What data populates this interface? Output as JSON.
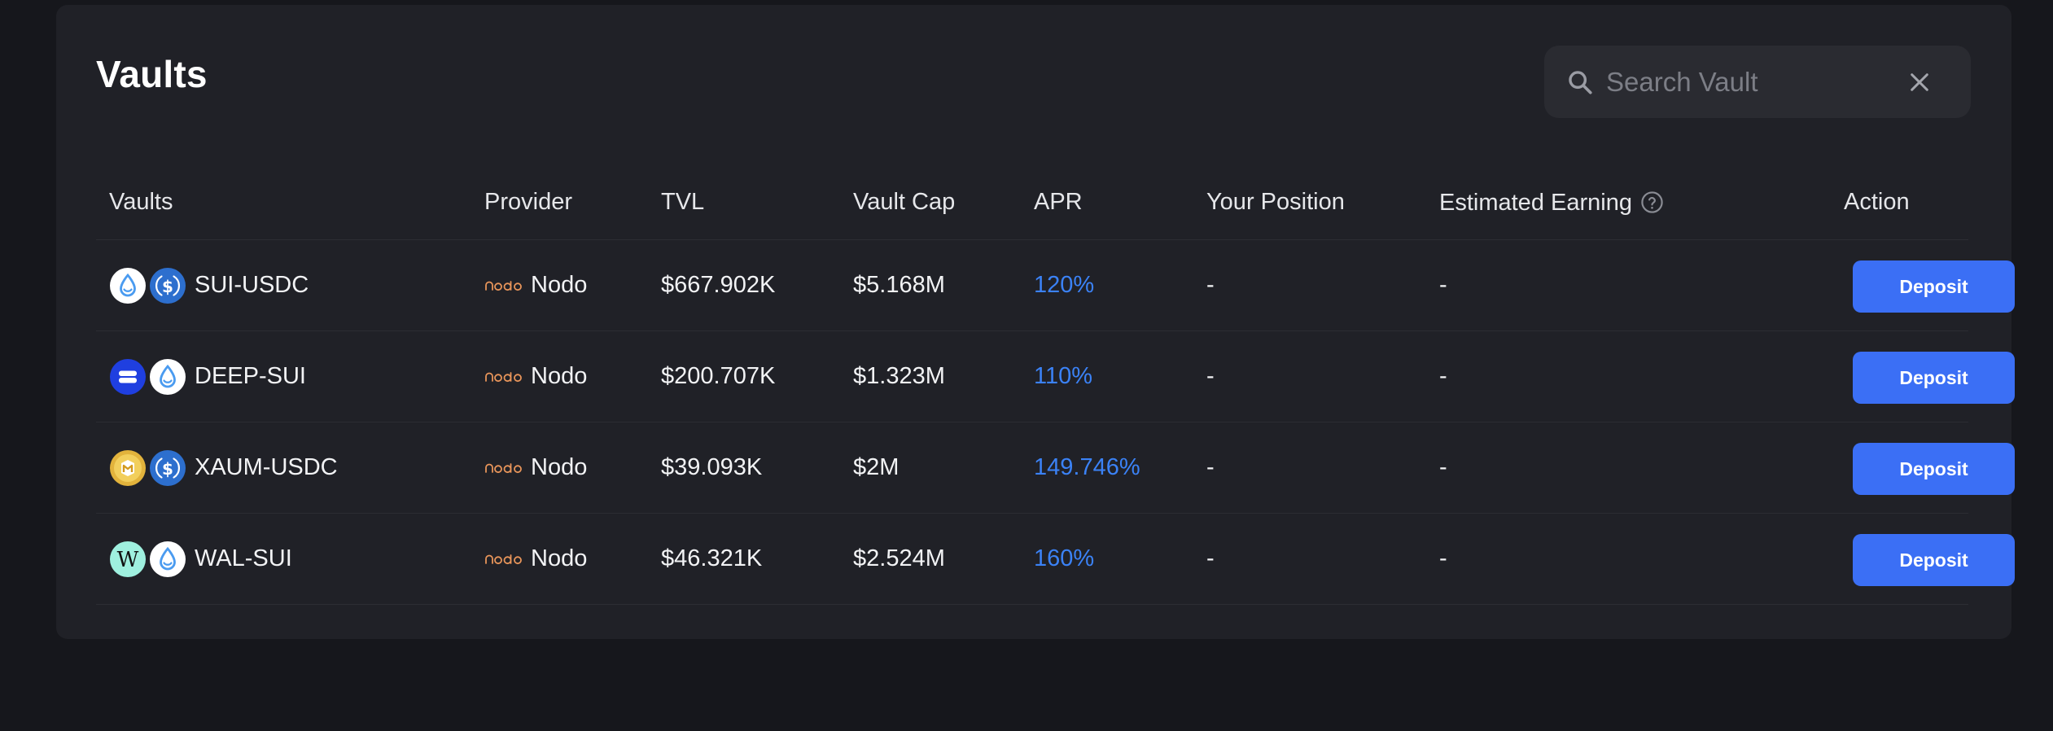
{
  "page": {
    "title": "Vaults"
  },
  "search": {
    "placeholder": "Search Vault",
    "value": ""
  },
  "columns": {
    "vaults": "Vaults",
    "provider": "Provider",
    "tvl": "TVL",
    "vault_cap": "Vault Cap",
    "apr": "APR",
    "your_position": "Your Position",
    "estimated_earning": "Estimated Earning",
    "action": "Action"
  },
  "rows": [
    {
      "pair": "SUI-USDC",
      "coins": [
        "sui-icon",
        "usdc-icon"
      ],
      "provider": "Nodo",
      "tvl": "$667.902K",
      "vault_cap": "$5.168M",
      "apr": "120%",
      "your_position": "-",
      "estimated_earning": "-",
      "action": "Deposit"
    },
    {
      "pair": "DEEP-SUI",
      "coins": [
        "deep-icon",
        "sui-icon"
      ],
      "provider": "Nodo",
      "tvl": "$200.707K",
      "vault_cap": "$1.323M",
      "apr": "110%",
      "your_position": "-",
      "estimated_earning": "-",
      "action": "Deposit"
    },
    {
      "pair": "XAUM-USDC",
      "coins": [
        "xaum-icon",
        "usdc-icon"
      ],
      "provider": "Nodo",
      "tvl": "$39.093K",
      "vault_cap": "$2M",
      "apr": "149.746%",
      "your_position": "-",
      "estimated_earning": "-",
      "action": "Deposit"
    },
    {
      "pair": "WAL-SUI",
      "coins": [
        "wal-icon",
        "sui-icon"
      ],
      "provider": "Nodo",
      "tvl": "$46.321K",
      "vault_cap": "$2.524M",
      "apr": "160%",
      "your_position": "-",
      "estimated_earning": "-",
      "action": "Deposit"
    }
  ],
  "colors": {
    "background": "#16171c",
    "panel": "#202127",
    "accent": "#3b6ff5",
    "apr_text": "#3b82f6",
    "provider_logo": "#e8955a"
  }
}
